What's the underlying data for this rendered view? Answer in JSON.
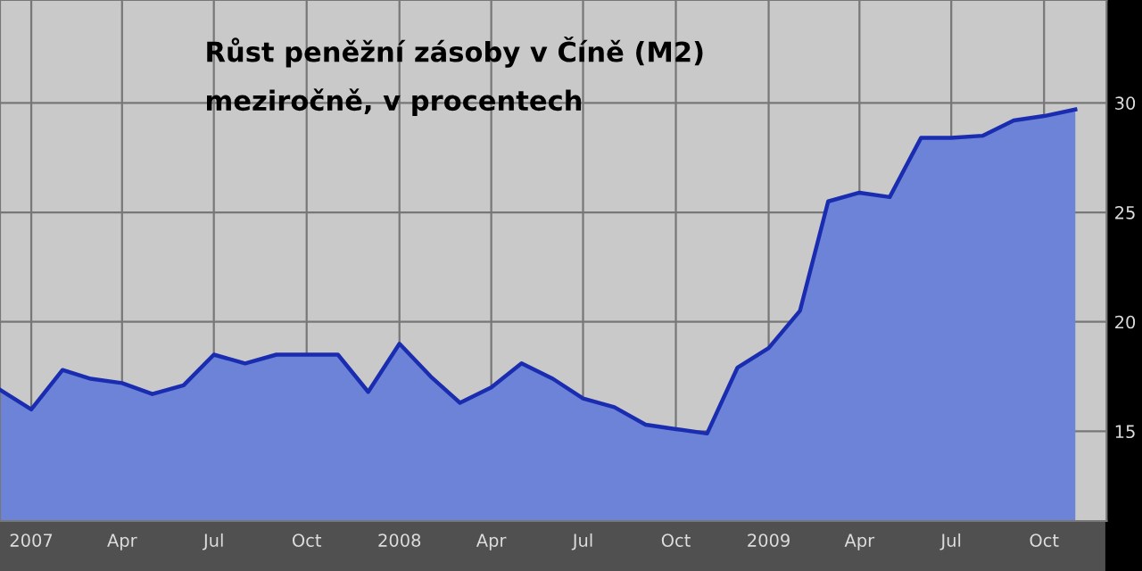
{
  "chart_data": {
    "type": "area",
    "title": "Růst peněžní zásoby v Číně (M2)",
    "subtitle": "meziročně, v procentech",
    "x": [
      "2006-12-01",
      "2007-01-01",
      "2007-02-01",
      "2007-03-01",
      "2007-04-01",
      "2007-05-01",
      "2007-06-01",
      "2007-07-01",
      "2007-08-01",
      "2007-09-01",
      "2007-10-01",
      "2007-11-01",
      "2007-12-01",
      "2008-01-01",
      "2008-02-01",
      "2008-03-01",
      "2008-04-01",
      "2008-05-01",
      "2008-06-01",
      "2008-07-01",
      "2008-08-01",
      "2008-09-01",
      "2008-10-01",
      "2008-11-01",
      "2008-12-01",
      "2009-01-01",
      "2009-02-01",
      "2009-03-01",
      "2009-04-01",
      "2009-05-01",
      "2009-06-01",
      "2009-07-01",
      "2009-08-01",
      "2009-09-01",
      "2009-10-01",
      "2009-11-01"
    ],
    "series": [
      {
        "color": "#1a2db0",
        "values": [
          16.9,
          16.0,
          17.8,
          17.4,
          17.2,
          16.7,
          17.1,
          18.5,
          18.1,
          18.5,
          18.5,
          18.5,
          16.8,
          19.0,
          17.5,
          16.3,
          17.0,
          18.1,
          17.4,
          16.5,
          16.1,
          15.3,
          15.1,
          14.9,
          17.9,
          18.8,
          20.5,
          25.5,
          25.9,
          25.7,
          28.4,
          28.4,
          28.5,
          29.2,
          29.4,
          29.7
        ]
      }
    ],
    "xlim": [
      "2006-12-01",
      "2009-12-02"
    ],
    "ylim": [
      10.9,
      34.7
    ],
    "yticks": [
      15,
      20,
      25,
      30
    ],
    "xticks": [
      {
        "value": "2007-01-01",
        "label": "2007"
      },
      {
        "value": "2007-04-01",
        "label": "Apr"
      },
      {
        "value": "2007-07-01",
        "label": "Jul"
      },
      {
        "value": "2007-10-01",
        "label": "Oct"
      },
      {
        "value": "2008-01-01",
        "label": "2008"
      },
      {
        "value": "2008-04-01",
        "label": "Apr"
      },
      {
        "value": "2008-07-01",
        "label": "Jul"
      },
      {
        "value": "2008-10-01",
        "label": "Oct"
      },
      {
        "value": "2009-01-01",
        "label": "2009"
      },
      {
        "value": "2009-04-01",
        "label": "Apr"
      },
      {
        "value": "2009-07-01",
        "label": "Jul"
      },
      {
        "value": "2009-10-01",
        "label": "Oct"
      }
    ],
    "grid": true,
    "legend": false,
    "marker": "none",
    "line_style": "solid"
  }
}
